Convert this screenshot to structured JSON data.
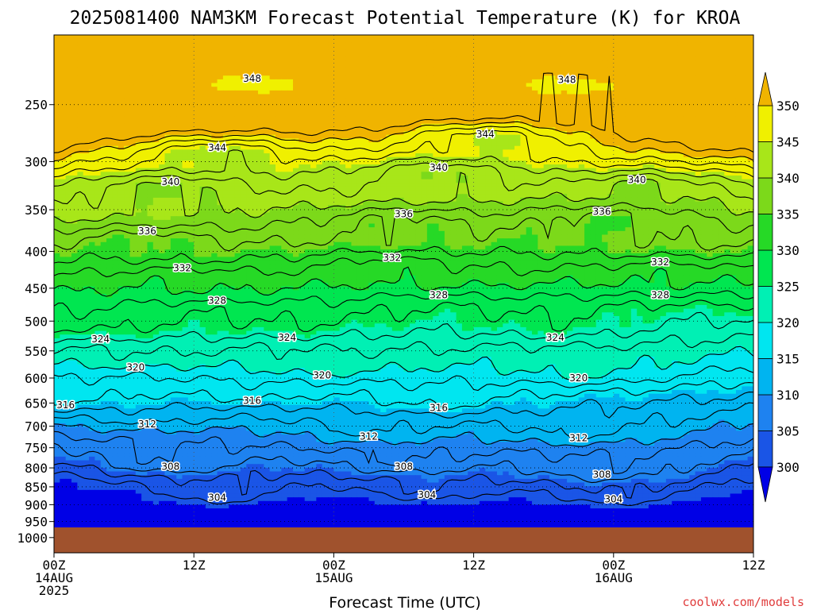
{
  "chart_data": {
    "type": "contour",
    "title": "2025081400 NAM3KM Forecast Potential Temperature (K) for KROA",
    "xlabel": "Forecast Time (UTC)",
    "ylabel": "",
    "credit": "coolwx.com/models",
    "x_ticks": [
      {
        "hours": 0,
        "l1": "00Z",
        "l2": "14AUG",
        "l3": "2025"
      },
      {
        "hours": 12,
        "l1": "12Z",
        "l2": "",
        "l3": ""
      },
      {
        "hours": 24,
        "l1": "00Z",
        "l2": "15AUG",
        "l3": ""
      },
      {
        "hours": 36,
        "l1": "12Z",
        "l2": "",
        "l3": ""
      },
      {
        "hours": 48,
        "l1": "00Z",
        "l2": "16AUG",
        "l3": ""
      },
      {
        "hours": 60,
        "l1": "12Z",
        "l2": "",
        "l3": ""
      }
    ],
    "xlim": [
      0,
      60
    ],
    "y_scale": "log pressure (hPa, inverted)",
    "ylim": [
      1050,
      200
    ],
    "y_ticks": [
      250,
      300,
      350,
      400,
      450,
      500,
      550,
      600,
      650,
      700,
      750,
      800,
      850,
      900,
      950,
      1000
    ],
    "ground_hpa": 968,
    "colorbar": {
      "levels": [
        300,
        305,
        310,
        315,
        320,
        325,
        330,
        335,
        340,
        345,
        350
      ],
      "colors": [
        "#0000e6",
        "#1a55e6",
        "#1e82f0",
        "#00b4f0",
        "#00e6f0",
        "#00f0b4",
        "#00e650",
        "#26d926",
        "#7cd91a",
        "#a8e619",
        "#f0f000",
        "#f0b400"
      ]
    },
    "contour_labels": [
      {
        "v": 348,
        "p": 230,
        "h": 17
      },
      {
        "v": 348,
        "p": 231,
        "h": 44
      },
      {
        "v": 344,
        "p": 287,
        "h": 14
      },
      {
        "v": 344,
        "p": 275,
        "h": 37
      },
      {
        "v": 340,
        "p": 320,
        "h": 10
      },
      {
        "v": 340,
        "p": 306,
        "h": 33
      },
      {
        "v": 340,
        "p": 318,
        "h": 50
      },
      {
        "v": 336,
        "p": 375,
        "h": 8
      },
      {
        "v": 336,
        "p": 355,
        "h": 30
      },
      {
        "v": 336,
        "p": 352,
        "h": 47
      },
      {
        "v": 332,
        "p": 422,
        "h": 11
      },
      {
        "v": 332,
        "p": 408,
        "h": 29
      },
      {
        "v": 332,
        "p": 414,
        "h": 52
      },
      {
        "v": 328,
        "p": 468,
        "h": 14
      },
      {
        "v": 328,
        "p": 460,
        "h": 33
      },
      {
        "v": 328,
        "p": 460,
        "h": 52
      },
      {
        "v": 324,
        "p": 530,
        "h": 4
      },
      {
        "v": 324,
        "p": 527,
        "h": 20
      },
      {
        "v": 324,
        "p": 527,
        "h": 43
      },
      {
        "v": 320,
        "p": 580,
        "h": 7
      },
      {
        "v": 320,
        "p": 595,
        "h": 23
      },
      {
        "v": 320,
        "p": 600,
        "h": 45
      },
      {
        "v": 316,
        "p": 654,
        "h": 1
      },
      {
        "v": 316,
        "p": 645,
        "h": 17
      },
      {
        "v": 316,
        "p": 660,
        "h": 33
      },
      {
        "v": 312,
        "p": 695,
        "h": 8
      },
      {
        "v": 312,
        "p": 723,
        "h": 27
      },
      {
        "v": 312,
        "p": 727,
        "h": 45
      },
      {
        "v": 308,
        "p": 797,
        "h": 10
      },
      {
        "v": 308,
        "p": 797,
        "h": 30
      },
      {
        "v": 308,
        "p": 817,
        "h": 47
      },
      {
        "v": 304,
        "p": 880,
        "h": 14
      },
      {
        "v": 304,
        "p": 872,
        "h": 32
      },
      {
        "v": 304,
        "p": 884,
        "h": 48
      }
    ]
  }
}
